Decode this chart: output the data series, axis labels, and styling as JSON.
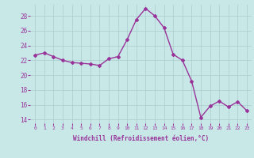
{
  "x": [
    0,
    1,
    2,
    3,
    4,
    5,
    6,
    7,
    8,
    9,
    10,
    11,
    12,
    13,
    14,
    15,
    16,
    17,
    18,
    19,
    20,
    21,
    22,
    23
  ],
  "y": [
    22.7,
    23.0,
    22.5,
    22.0,
    21.7,
    21.6,
    21.5,
    21.3,
    22.2,
    22.5,
    24.8,
    27.5,
    29.0,
    28.0,
    26.4,
    22.8,
    22.0,
    19.2,
    14.3,
    15.8,
    16.5,
    15.7,
    16.4,
    15.2
  ],
  "line_color": "#993399",
  "marker": "D",
  "marker_size": 2.0,
  "bg_color": "#c8e8e8",
  "grid_color": "#aacccc",
  "xlabel": "Windchill (Refroidissement éolien,°C)",
  "xlabel_color": "#993399",
  "tick_color": "#993399",
  "ylabel_ticks": [
    14,
    16,
    18,
    20,
    22,
    24,
    26,
    28
  ],
  "xlim": [
    -0.5,
    23.5
  ],
  "ylim": [
    13.5,
    29.5
  ],
  "xtick_labels": [
    "0",
    "1",
    "2",
    "3",
    "4",
    "5",
    "6",
    "7",
    "8",
    "9",
    "10",
    "11",
    "12",
    "13",
    "14",
    "15",
    "16",
    "17",
    "18",
    "19",
    "20",
    "21",
    "22",
    "23"
  ],
  "line_width": 1.0
}
